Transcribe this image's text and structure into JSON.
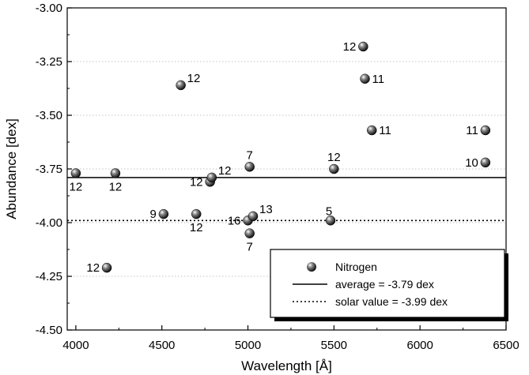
{
  "chart_data": {
    "type": "scatter",
    "xlabel": "Wavelength [Å]",
    "ylabel": "Abundance [dex]",
    "xlim": [
      3950,
      6500
    ],
    "ylim": [
      -4.5,
      -3.0
    ],
    "xticks": [
      4000,
      4500,
      5000,
      5500,
      6000,
      6500
    ],
    "yticks": [
      -3.0,
      -3.25,
      -3.5,
      -3.75,
      -4.0,
      -4.25,
      -4.5
    ],
    "xtick_labels": [
      "4000",
      "4500",
      "5000",
      "5500",
      "6000",
      "6500"
    ],
    "ytick_labels": [
      "-3.00",
      "-3.25",
      "-3.50",
      "-3.75",
      "-4.00",
      "-4.25",
      "-4.50"
    ],
    "grid": "horizontal dotted",
    "legend_position": "bottom-right",
    "series": [
      {
        "name": "Nitrogen",
        "marker": "sphere",
        "points": [
          {
            "x": 4000,
            "y": -3.77,
            "label": "12",
            "anchor": "below"
          },
          {
            "x": 4230,
            "y": -3.77,
            "label": "12",
            "anchor": "below"
          },
          {
            "x": 4180,
            "y": -4.21,
            "label": "12",
            "anchor": "left"
          },
          {
            "x": 4510,
            "y": -3.96,
            "label": "9",
            "anchor": "left"
          },
          {
            "x": 4610,
            "y": -3.36,
            "label": "12",
            "anchor": "above-right"
          },
          {
            "x": 4700,
            "y": -3.96,
            "label": "12",
            "anchor": "below"
          },
          {
            "x": 4780,
            "y": -3.81,
            "label": "12",
            "anchor": "left"
          },
          {
            "x": 4790,
            "y": -3.79,
            "label": "12",
            "anchor": "above-right"
          },
          {
            "x": 5000,
            "y": -3.99,
            "label": "16",
            "anchor": "left"
          },
          {
            "x": 5010,
            "y": -4.05,
            "label": "7",
            "anchor": "below"
          },
          {
            "x": 5010,
            "y": -3.74,
            "label": "7",
            "anchor": "above"
          },
          {
            "x": 5030,
            "y": -3.97,
            "label": "13",
            "anchor": "above-right"
          },
          {
            "x": 5480,
            "y": -3.99,
            "label": "5",
            "anchor": "above-left"
          },
          {
            "x": 5500,
            "y": -3.75,
            "label": "12",
            "anchor": "above"
          },
          {
            "x": 5670,
            "y": -3.18,
            "label": "12",
            "anchor": "left"
          },
          {
            "x": 5680,
            "y": -3.33,
            "label": "11",
            "anchor": "right"
          },
          {
            "x": 5720,
            "y": -3.57,
            "label": "11",
            "anchor": "right"
          },
          {
            "x": 6380,
            "y": -3.57,
            "label": "11",
            "anchor": "left"
          },
          {
            "x": 6380,
            "y": -3.72,
            "label": "10",
            "anchor": "left"
          }
        ]
      }
    ],
    "reference_lines": [
      {
        "name": "average = -3.79 dex",
        "y": -3.79,
        "style": "solid"
      },
      {
        "name": "solar value = -3.99 dex",
        "y": -3.99,
        "style": "dotted"
      }
    ],
    "legend": [
      {
        "label": "Nitrogen",
        "symbol": "sphere"
      },
      {
        "label": "average = -3.79 dex",
        "symbol": "solid-line"
      },
      {
        "label": "solar value = -3.99 dex",
        "symbol": "dotted-line"
      }
    ]
  },
  "colors": {
    "marker": "#1a1a1a",
    "marker_highlight": "#ffffff",
    "grid": "#b0b0b0",
    "axis": "#000000",
    "background": "#ffffff"
  }
}
